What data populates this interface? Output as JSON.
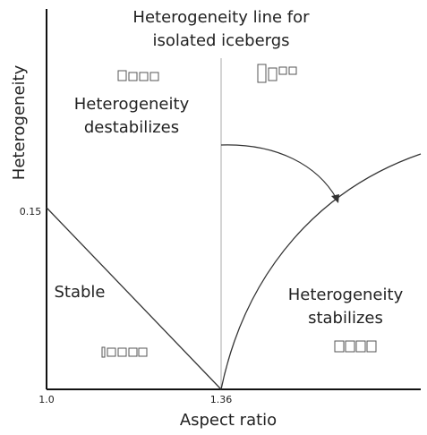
{
  "title": {
    "lines": [
      "Heterogeneity line for",
      "isolated icebergs"
    ]
  },
  "regions": [
    {
      "lines": [
        "Heterogeneity",
        "destabilizes"
      ]
    },
    {
      "lines": [
        "Stable"
      ]
    },
    {
      "lines": [
        "Heterogeneity",
        "stabilizes"
      ]
    }
  ],
  "axes": {
    "y_label": "Heterogeneity",
    "x_label": "Aspect ratio",
    "y_tick": "0.15",
    "x_ticks": [
      "1.0",
      "1.36"
    ]
  }
}
